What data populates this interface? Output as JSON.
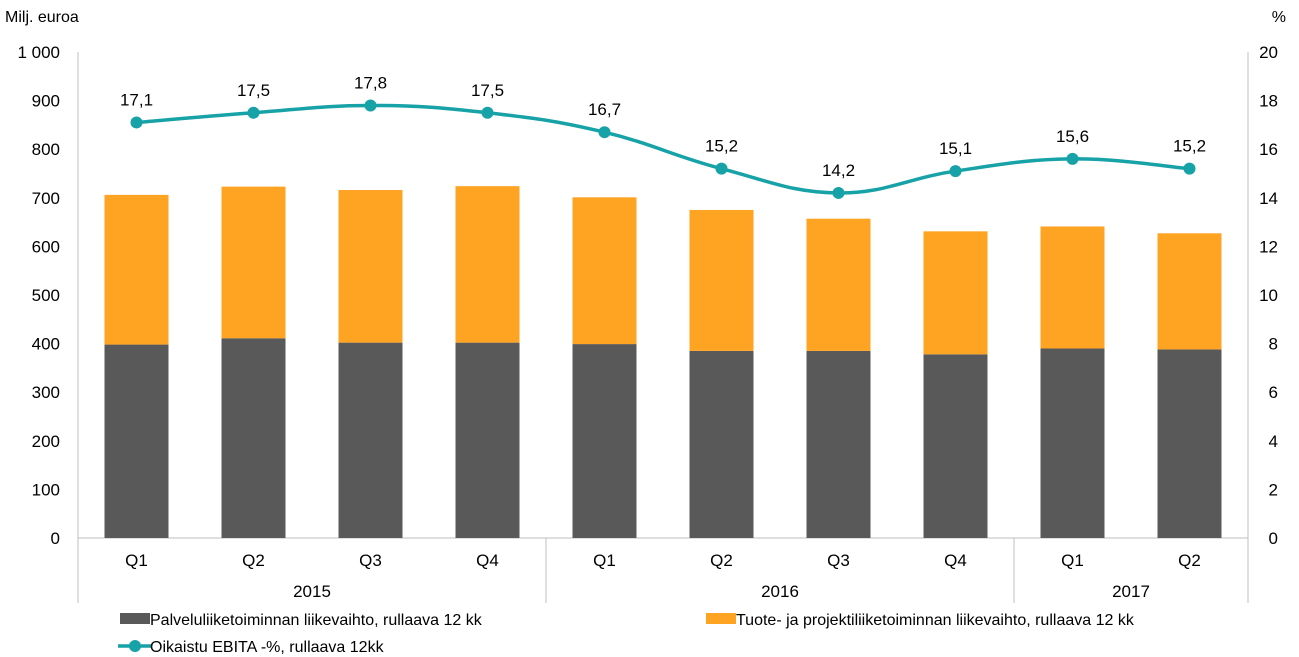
{
  "chart_data": {
    "type": "bar",
    "stacked": true,
    "categories": [
      "Q1",
      "Q2",
      "Q3",
      "Q4",
      "Q1",
      "Q2",
      "Q3",
      "Q4",
      "Q1",
      "Q2"
    ],
    "groups": [
      {
        "label": "2015",
        "count": 4
      },
      {
        "label": "2016",
        "count": 4
      },
      {
        "label": "2017",
        "count": 2
      }
    ],
    "series": [
      {
        "name": "Palveluliiketoiminnan liikevaihto, rullaava 12 kk",
        "type": "bar",
        "color": "#595959",
        "values": [
          398,
          411,
          402,
          402,
          399,
          385,
          385,
          378,
          390,
          388
        ]
      },
      {
        "name": "Tuote- ja projektiliiketoiminnan liikevaihto, rullaava 12 kk",
        "type": "bar",
        "color": "#FFA323",
        "values": [
          308,
          312,
          314,
          322,
          302,
          290,
          272,
          253,
          251,
          239
        ]
      },
      {
        "name": "Oikaistu EBITA -%, rullaava 12kk",
        "type": "line",
        "axis": "right",
        "color": "#17A2A8",
        "values": [
          17.1,
          17.5,
          17.8,
          17.5,
          16.7,
          15.2,
          14.2,
          15.1,
          15.6,
          15.2
        ],
        "labels": [
          "17,1",
          "17,5",
          "17,8",
          "17,5",
          "16,7",
          "15,2",
          "14,2",
          "15,1",
          "15,6",
          "15,2"
        ]
      }
    ],
    "yaxis_left": {
      "label": "Milj. euroa",
      "min": 0,
      "max": 1000,
      "step": 100,
      "ticks": [
        "0",
        "100",
        "200",
        "300",
        "400",
        "500",
        "600",
        "700",
        "800",
        "900",
        "1 000"
      ]
    },
    "yaxis_right": {
      "label": "%",
      "min": 0,
      "max": 20,
      "step": 2,
      "ticks": [
        "0",
        "2",
        "4",
        "6",
        "8",
        "10",
        "12",
        "14",
        "16",
        "18",
        "20"
      ]
    },
    "grid": false,
    "legend_position": "bottom"
  }
}
